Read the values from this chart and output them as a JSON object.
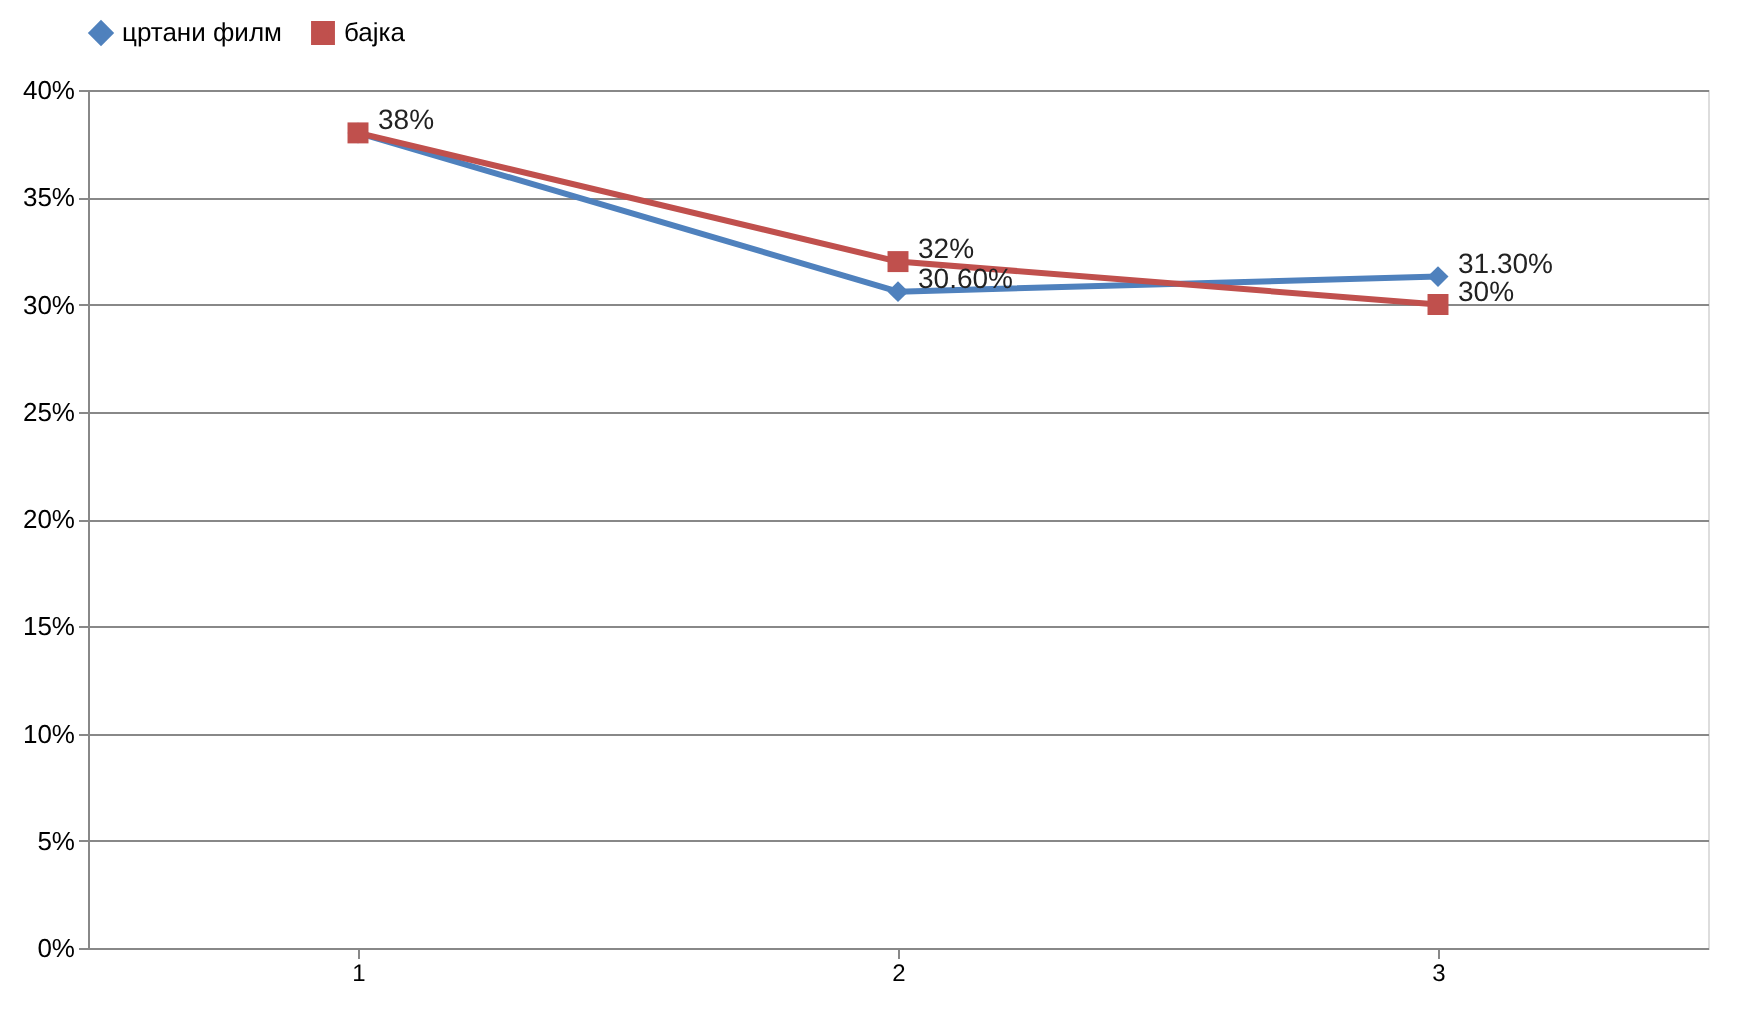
{
  "chart_data": {
    "type": "line",
    "categories": [
      "1",
      "2",
      "3"
    ],
    "series": [
      {
        "name": "цртани филм",
        "color": "#4f81bd",
        "marker": "diamond",
        "values": [
          38,
          30.6,
          31.3
        ],
        "value_labels": [
          null,
          "30.60%",
          "31.30%"
        ]
      },
      {
        "name": "бајка",
        "color": "#c0504d",
        "marker": "square",
        "values": [
          38,
          32,
          30
        ],
        "value_labels": [
          "38%",
          "32%",
          "30%"
        ]
      }
    ],
    "ylim": [
      0,
      40
    ],
    "yticks": [
      {
        "value": 0,
        "label": "0%"
      },
      {
        "value": 5,
        "label": "5%"
      },
      {
        "value": 10,
        "label": "10%"
      },
      {
        "value": 15,
        "label": "15%"
      },
      {
        "value": 20,
        "label": "20%"
      },
      {
        "value": 25,
        "label": "25%"
      },
      {
        "value": 30,
        "label": "30%"
      },
      {
        "value": 35,
        "label": "35%"
      },
      {
        "value": 40,
        "label": "40%"
      }
    ],
    "grid": "y",
    "legend": "top",
    "line_style": "solid"
  }
}
